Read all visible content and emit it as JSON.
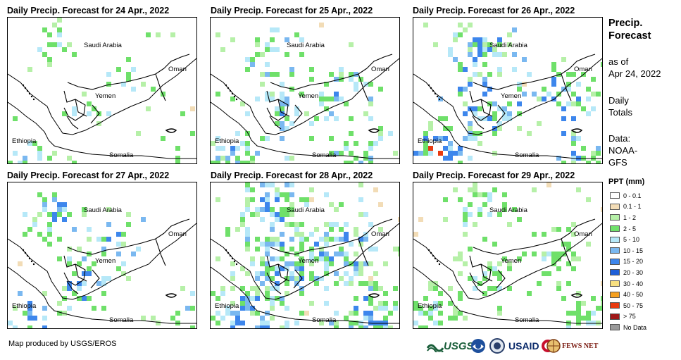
{
  "panels": [
    {
      "title": "Daily Precip. Forecast for 24 Apr., 2022",
      "seed": 11,
      "coverage": 0.35,
      "intensity": 0.3
    },
    {
      "title": "Daily Precip. Forecast for 25 Apr., 2022",
      "seed": 23,
      "coverage": 0.55,
      "intensity": 0.45
    },
    {
      "title": "Daily Precip. Forecast for 26 Apr., 2022",
      "seed": 37,
      "coverage": 0.6,
      "intensity": 0.6
    },
    {
      "title": "Daily Precip. Forecast for 27 Apr., 2022",
      "seed": 41,
      "coverage": 0.5,
      "intensity": 0.55
    },
    {
      "title": "Daily Precip. Forecast for 28 Apr., 2022",
      "seed": 53,
      "coverage": 0.8,
      "intensity": 0.55
    },
    {
      "title": "Daily Precip. Forecast for 29 Apr., 2022",
      "seed": 67,
      "coverage": 0.55,
      "intensity": 0.3
    }
  ],
  "map_labels": {
    "saudi": "Saudi Arabia",
    "oman": "Oman",
    "yemen": "Yemen",
    "ethiopia": "Ethiopia",
    "somalia": "Somalia"
  },
  "sidebar": {
    "title_line1": "Precip.",
    "title_line2": "Forecast",
    "asof_line1": "as of",
    "asof_line2": "Apr 24, 2022",
    "totals_line1": "Daily",
    "totals_line2": "Totals",
    "data_line1": "Data:",
    "data_line2": "NOAA-",
    "data_line3": "GFS"
  },
  "legend": {
    "title": "PPT (mm)",
    "items": [
      {
        "label": "0 - 0.1",
        "color": "#ffffff"
      },
      {
        "label": "0.1 - 1",
        "color": "#f2dcb6"
      },
      {
        "label": "1 - 2",
        "color": "#b6f0a8"
      },
      {
        "label": "2 - 5",
        "color": "#6fe06a"
      },
      {
        "label": "5 - 10",
        "color": "#b6e8f8"
      },
      {
        "label": "10 - 15",
        "color": "#7ab8f0"
      },
      {
        "label": "15 - 20",
        "color": "#3d86ec"
      },
      {
        "label": "20 - 30",
        "color": "#1e5fd8"
      },
      {
        "label": "30 - 40",
        "color": "#f8e080"
      },
      {
        "label": "40 - 50",
        "color": "#f5a020"
      },
      {
        "label": "50 - 75",
        "color": "#e83a10"
      },
      {
        "label": "> 75",
        "color": "#a01818"
      },
      {
        "label": "No Data",
        "color": "#9a9a9a"
      }
    ]
  },
  "footer": {
    "credit": "Map produced by USGS/EROS",
    "logos": {
      "usgs": "USGS",
      "usaid": "USAID",
      "fews": "FEWS NET"
    }
  }
}
